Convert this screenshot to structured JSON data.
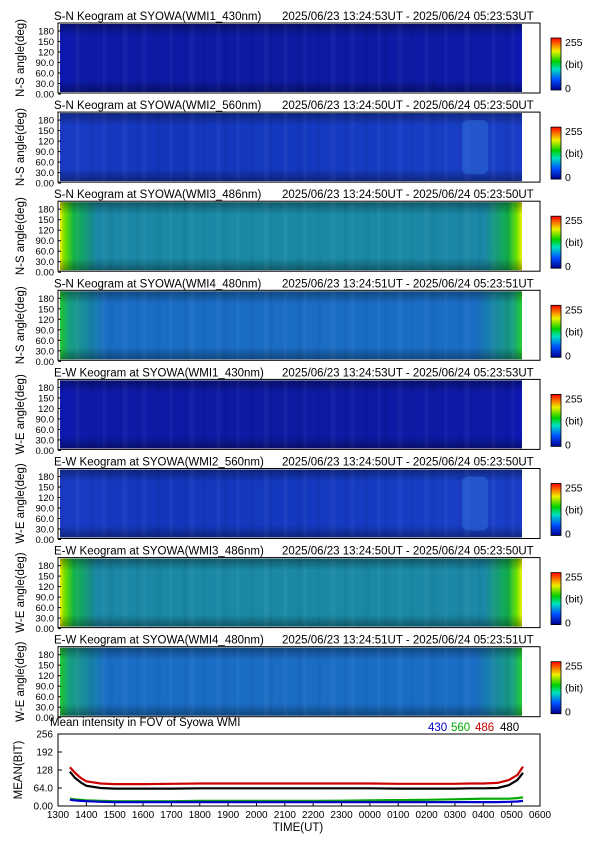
{
  "colors": {
    "series_430": "#0000cc",
    "series_560": "#00aa00",
    "series_486": "#cc0000",
    "series_480": "#000000"
  },
  "colorbar": {
    "max_label": "255",
    "unit_label": "(bit)",
    "min_label": "0"
  },
  "keograms": [
    {
      "id": "sn-wmi1",
      "title": "S-N Keogram at SYOWA(WMI1_430nm)",
      "range": "2025/06/23 13:24:53UT - 2025/06/24 05:23:53UT",
      "ylabel": "N-S angle(deg)",
      "ticks": [
        "180",
        "150",
        "120",
        "90.0",
        "60.0",
        "30.0",
        "0.00"
      ]
    },
    {
      "id": "sn-wmi2",
      "title": "S-N Keogram at SYOWA(WMI2_560nm)",
      "range": "2025/06/23 13:24:50UT - 2025/06/24 05:23:50UT",
      "ylabel": "N-S angle(deg)",
      "ticks": [
        "180",
        "150",
        "120",
        "90.0",
        "60.0",
        "30.0",
        "0.00"
      ]
    },
    {
      "id": "sn-wmi3",
      "title": "S-N Keogram at SYOWA(WMI3_486nm)",
      "range": "2025/06/23 13:24:50UT - 2025/06/24 05:23:50UT",
      "ylabel": "N-S angle(deg)",
      "ticks": [
        "180",
        "150",
        "120",
        "90.0",
        "60.0",
        "30.0",
        "0.00"
      ]
    },
    {
      "id": "sn-wmi4",
      "title": "S-N Keogram at SYOWA(WMI4_480nm)",
      "range": "2025/06/23 13:24:51UT - 2025/06/24 05:23:51UT",
      "ylabel": "N-S angle(deg)",
      "ticks": [
        "180",
        "150",
        "120",
        "90.0",
        "60.0",
        "30.0",
        "0.00"
      ]
    },
    {
      "id": "ew-wmi1",
      "title": "E-W Keogram at SYOWA(WMI1_430nm)",
      "range": "2025/06/23 13:24:53UT - 2025/06/24 05:23:53UT",
      "ylabel": "W-E angle(deg)",
      "ticks": [
        "180",
        "150",
        "120",
        "90.0",
        "60.0",
        "30.0",
        "0.00"
      ]
    },
    {
      "id": "ew-wmi2",
      "title": "E-W Keogram at SYOWA(WMI2_560nm)",
      "range": "2025/06/23 13:24:50UT - 2025/06/24 05:23:50UT",
      "ylabel": "W-E angle(deg)",
      "ticks": [
        "180",
        "150",
        "120",
        "90.0",
        "60.0",
        "30.0",
        "0.00"
      ]
    },
    {
      "id": "ew-wmi3",
      "title": "E-W Keogram at SYOWA(WMI3_486nm)",
      "range": "2025/06/23 13:24:50UT - 2025/06/24 05:23:50UT",
      "ylabel": "W-E angle(deg)",
      "ticks": [
        "180",
        "150",
        "120",
        "90.0",
        "60.0",
        "30.0",
        "0.00"
      ]
    },
    {
      "id": "ew-wmi4",
      "title": "E-W Keogram at SYOWA(WMI4_480nm)",
      "range": "2025/06/23 13:24:51UT - 2025/06/24 05:23:51UT",
      "ylabel": "W-E angle(deg)",
      "ticks": [
        "180",
        "150",
        "120",
        "90.0",
        "60.0",
        "30.0",
        "0.00"
      ]
    }
  ],
  "chart_data": {
    "type": "line",
    "title": "Mean intensity in FOV of Syowa WMI",
    "xlabel": "TIME(UT)",
    "ylabel": "MEAN(BIT)",
    "xlim": [
      13,
      30
    ],
    "ylim": [
      0,
      256
    ],
    "x_ticks": [
      "1300",
      "1400",
      "1500",
      "1600",
      "1700",
      "1800",
      "1900",
      "2000",
      "2100",
      "2200",
      "2300",
      "0000",
      "0100",
      "0200",
      "0300",
      "0400",
      "0500",
      "0600"
    ],
    "y_ticks": [
      "256",
      "192",
      "128",
      "64.0",
      "0.00"
    ],
    "legend": [
      "430",
      "560",
      "486",
      "480"
    ],
    "x": [
      13.42,
      13.6,
      13.8,
      14.0,
      14.5,
      15.0,
      16.0,
      17.0,
      18.0,
      19.0,
      20.0,
      21.0,
      22.0,
      23.0,
      24.0,
      25.0,
      26.0,
      27.0,
      27.5,
      28.0,
      28.5,
      28.9,
      29.2,
      29.4
    ],
    "series": [
      {
        "name": "430",
        "values": [
          22,
          20,
          18,
          17,
          15,
          14,
          14,
          14,
          14,
          14,
          14,
          14,
          14,
          14,
          14,
          14,
          14,
          14,
          14,
          14,
          14,
          15,
          16,
          18
        ]
      },
      {
        "name": "560",
        "values": [
          26,
          24,
          22,
          20,
          18,
          17,
          17,
          17,
          18,
          18,
          18,
          18,
          18,
          19,
          20,
          21,
          22,
          24,
          25,
          26,
          26,
          26,
          28,
          31
        ]
      },
      {
        "name": "486",
        "values": [
          138,
          118,
          100,
          88,
          80,
          78,
          78,
          79,
          80,
          80,
          80,
          80,
          80,
          80,
          80,
          79,
          79,
          79,
          80,
          80,
          82,
          92,
          110,
          140
        ]
      },
      {
        "name": "480",
        "values": [
          122,
          100,
          84,
          72,
          64,
          62,
          62,
          62,
          63,
          63,
          63,
          63,
          63,
          63,
          63,
          62,
          62,
          62,
          63,
          63,
          64,
          74,
          92,
          118
        ]
      }
    ]
  }
}
